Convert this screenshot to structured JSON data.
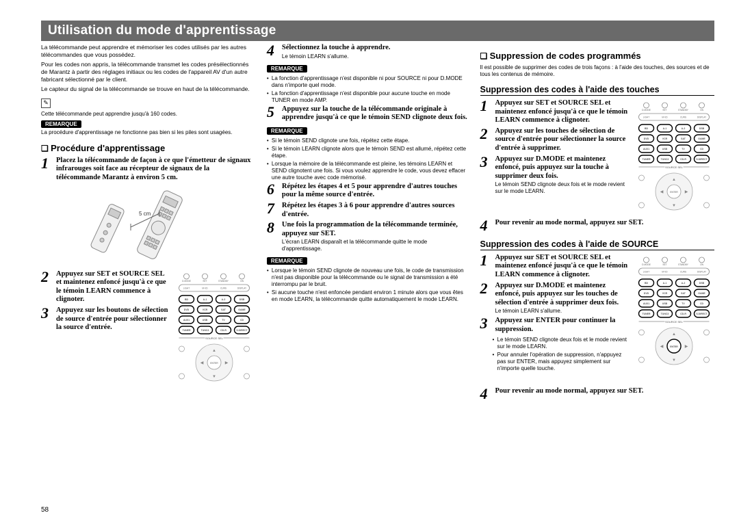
{
  "banner": "Utilisation du mode d'apprentissage",
  "pageNumber": "58",
  "pencilGlyph": "✎",
  "remarkLabel": "REMARQUE",
  "figLabel5cm": "5 cm",
  "col1": {
    "intro": "La télécommande peut apprendre et mémoriser les codes utilisés par les autres télécommandes que vous possédez.",
    "intro2": "Pour les codes non appris, la télécommande transmet les codes présélectionnés de Marantz à partir des réglages initiaux ou les codes de l'appareil AV d'un autre fabricant sélectionné par le client.",
    "intro3": "Le capteur du signal de la télécommande se trouve en haut de la télécommande.",
    "pencilNote": "Cette télécommande peut apprendre jusqu'à 160 codes.",
    "remark1": "La procédure d'apprentissage ne fonctionne pas bien si les piles sont usagées.",
    "sectionA": {
      "title": "Procédure d'apprentissage",
      "step1": "Placez la télécommande de façon à ce que l'émetteur de signaux infrarouges soit face au récepteur de signaux de la télécommande Marantz à environ 5 cm.",
      "step2": "Appuyez sur SET et SOURCE SEL et maintenez enfoncé jusqu'à ce que le témoin LEARN commence à clignoter.",
      "step3": "Appuyez sur les boutons de sélection de source d'entrée pour sélectionner la source d'entrée."
    }
  },
  "col2": {
    "step4": "Sélectionnez la touche à apprendre.",
    "step4note": "Le témoin LEARN s'allume.",
    "remark4": [
      "La fonction d'apprentissage n'est disponible ni pour SOURCE ni pour D.MODE dans n'importe quel mode.",
      "La fonction d'apprentissage n'est disponible pour aucune touche en mode TUNER en mode AMP."
    ],
    "step5": "Appuyez sur la touche de la télécommande originale à apprendre jusqu'à ce que le témoin SEND clignote deux fois.",
    "remark5": [
      "Si le témoin SEND clignote une fois, répétez cette étape.",
      "Si le témoin LEARN clignote alors que le témoin SEND est allumé, répétez cette étape.",
      "Lorsque la mémoire de la télécommande est pleine, les témoins LEARN et SEND clignotent une fois. Si vous voulez apprendre le code, vous devez effacer une autre touche avec code mémorisé."
    ],
    "step6": "Répétez les étapes 4 et 5 pour apprendre d'autres touches pour la même source d'entrée.",
    "step7": "Répétez les étapes 3 à 6 pour apprendre d'autres sources d'entrée.",
    "step8": "Une fois la programmation de la télécommande terminée, appuyez sur SET.",
    "step8note": "L'écran LEARN disparaît et la télécommande quitte le mode d'apprentissage.",
    "remark8": [
      "Lorsque le témoin SEND clignote de nouveau une fois, le code de transmission n'est pas disponible pour la télécommande ou le signal de transmission a été interrompu par le bruit.",
      "Si aucune touche n'est enfoncée pendant environ 1 minute alors que vous êtes en mode LEARN, la télécommande quitte automatiquement le mode LEARN."
    ]
  },
  "col3": {
    "sectionB": {
      "title": "Suppression de codes programmés",
      "intro": "Il est possible de supprimer des codes de trois façons : à l'aide des touches, des sources et de tous les contenus de mémoire."
    },
    "subA": {
      "title": "Suppression des codes à l'aide des touches",
      "step1": "Appuyez sur SET et SOURCE SEL et maintenez enfoncé jusqu'à ce que le témoin LEARN commence à clignoter.",
      "step2": "Appuyez sur les touches de sélection de source d'entrée pour sélectionner la source d'entrée à supprimer.",
      "step3": "Appuyez sur D.MODE et maintenez enfoncé, puis appuyez sur la touche à supprimer deux fois.",
      "step3note": "Le témoin SEND clignote deux fois et le mode revient sur le mode LEARN.",
      "step4": "Pour revenir au mode normal, appuyez sur SET."
    },
    "subB": {
      "title": "Suppression des codes à l'aide de SOURCE",
      "step1": "Appuyez sur SET et SOURCE SEL et maintenez enfoncé jusqu'à ce que le témoin LEARN commence à clignoter.",
      "step2": "Appuyez sur D.MODE et maintenez enfoncé, puis appuyez sur les touches de sélection d'entrée à supprimer deux fois.",
      "step2note": "Le témoin LEARN s'allume.",
      "step3": "Appuyez sur ENTER pour continuer la suppression.",
      "step3notes": [
        "Le témoin SEND clignote deux fois et le mode revient sur le mode LEARN.",
        "Pour annuler l'opération de suppression, n'appuyez pas sur ENTER, mais appuyez simplement sur n'importe quelle touche."
      ],
      "step4": "Pour revenir au mode normal, appuyez sur SET."
    }
  },
  "remote": {
    "rows": [
      [
        "D.MODE",
        "SET",
        "STANDBY",
        "ON"
      ],
      [
        "LIGHT",
        "M-VD",
        "CURS",
        "DISPLAY"
      ],
      [
        "BD",
        "A-1",
        "A-2",
        "DSB"
      ],
      [
        "DVD",
        "VCR",
        "SAT",
        "GAME"
      ],
      [
        "AUX1",
        "USB",
        "TV",
        "CD"
      ],
      [
        "TUNER",
        "TUNC3",
        "CD-R",
        "S.DIRECT"
      ]
    ],
    "sourceSel": "SOURCE SEL",
    "dpad": [
      "▲",
      "◀",
      "ENTER",
      "▶",
      "▼"
    ]
  }
}
